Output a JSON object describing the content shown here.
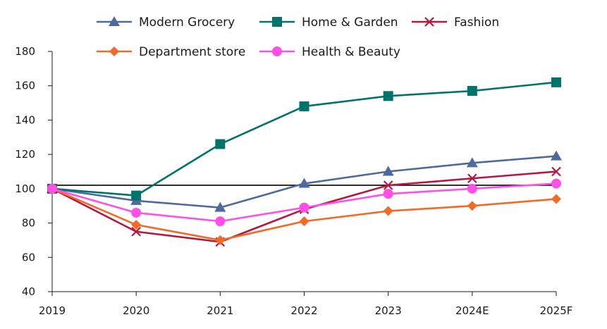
{
  "chart_data": {
    "type": "line",
    "title": "",
    "xlabel": "",
    "ylabel": "",
    "categories": [
      "2019",
      "2020",
      "2021",
      "2022",
      "2023",
      "2024E",
      "2025F"
    ],
    "ylim": [
      40,
      180
    ],
    "yticks": [
      40,
      60,
      80,
      100,
      120,
      140,
      160,
      180
    ],
    "reference_line": 102,
    "grid": false,
    "legend_position": "top",
    "series": [
      {
        "name": "Modern Grocery",
        "color": "#4e6a9c",
        "marker": "triangle",
        "values": [
          100,
          93,
          89,
          103,
          110,
          115,
          119
        ]
      },
      {
        "name": "Home & Garden",
        "color": "#00736a",
        "marker": "square",
        "values": [
          100,
          96,
          126,
          148,
          154,
          157,
          162
        ]
      },
      {
        "name": "Fashion",
        "color": "#b5173f",
        "marker": "x",
        "values": [
          100,
          75,
          69,
          88,
          102,
          106,
          110
        ]
      },
      {
        "name": "Department store",
        "color": "#f26a25",
        "marker": "diamond",
        "values": [
          100,
          79,
          70,
          81,
          87,
          90,
          94
        ]
      },
      {
        "name": "Health & Beauty",
        "color": "#ff4fe6",
        "marker": "circle",
        "values": [
          100,
          86,
          81,
          89,
          97,
          100,
          103
        ]
      }
    ]
  }
}
